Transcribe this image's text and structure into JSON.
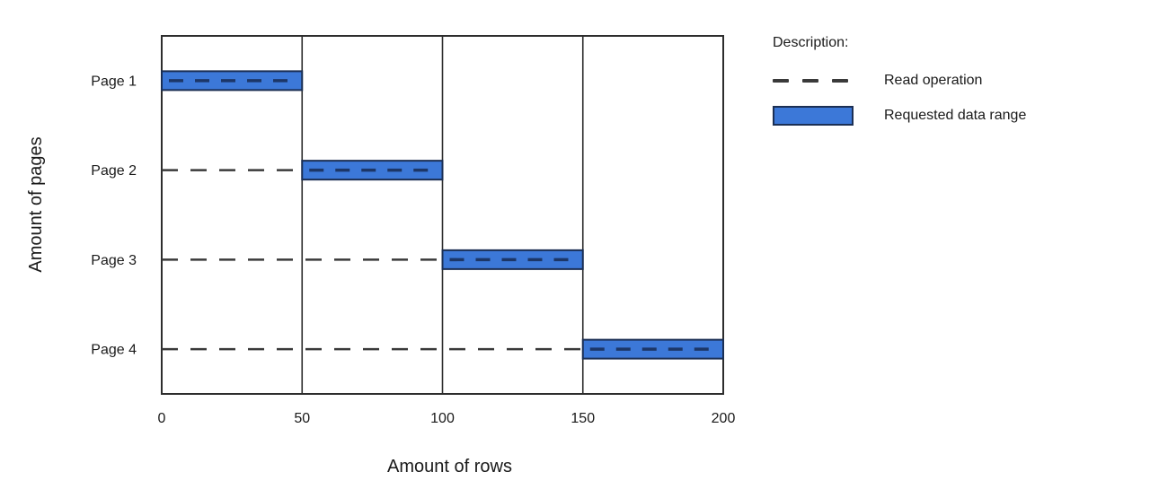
{
  "chart_data": {
    "type": "bar",
    "subtype": "horizontal-range-bars-with-read-operation-lines",
    "title": "",
    "xlabel": "Amount of rows",
    "ylabel": "Amount of pages",
    "xlim": [
      0,
      200
    ],
    "x_ticks": [
      {
        "label": "0",
        "value": 0
      },
      {
        "label": "50",
        "value": 50
      },
      {
        "label": "100",
        "value": 100
      },
      {
        "label": "150",
        "value": 150
      },
      {
        "label": "200",
        "value": 200
      }
    ],
    "categories": [
      "Page 1",
      "Page 2",
      "Page 3",
      "Page 4"
    ],
    "grid": "vertical gridlines at every x tick plus full rectangular plot border",
    "legend_position": "top-right",
    "rows": [
      {
        "label": "Page 1",
        "read_operation_range": [
          0,
          50
        ],
        "requested_data_range": [
          0,
          50
        ]
      },
      {
        "label": "Page 2",
        "read_operation_range": [
          0,
          100
        ],
        "requested_data_range": [
          50,
          100
        ]
      },
      {
        "label": "Page 3",
        "read_operation_range": [
          0,
          150
        ],
        "requested_data_range": [
          100,
          150
        ]
      },
      {
        "label": "Page 4",
        "read_operation_range": [
          0,
          200
        ],
        "requested_data_range": [
          150,
          200
        ]
      }
    ],
    "series": [
      {
        "name": "Read operation",
        "style": "dashed-line"
      },
      {
        "name": "Requested data range",
        "style": "filled-bar"
      }
    ]
  },
  "legend": {
    "title": "Description:",
    "items": [
      {
        "label": "Read operation",
        "swatch": "dashed-line"
      },
      {
        "label": "Requested data range",
        "swatch": "blue-bar"
      }
    ]
  },
  "colors": {
    "background": "#ffffff",
    "bar_fill": "#3c78d8",
    "bar_border": "#1b2f54",
    "bar_inner_dash": "#1c3667",
    "read_dash": "#3a3a3a",
    "axis_line": "#2d2d2d",
    "text": "#1a1a1a"
  }
}
